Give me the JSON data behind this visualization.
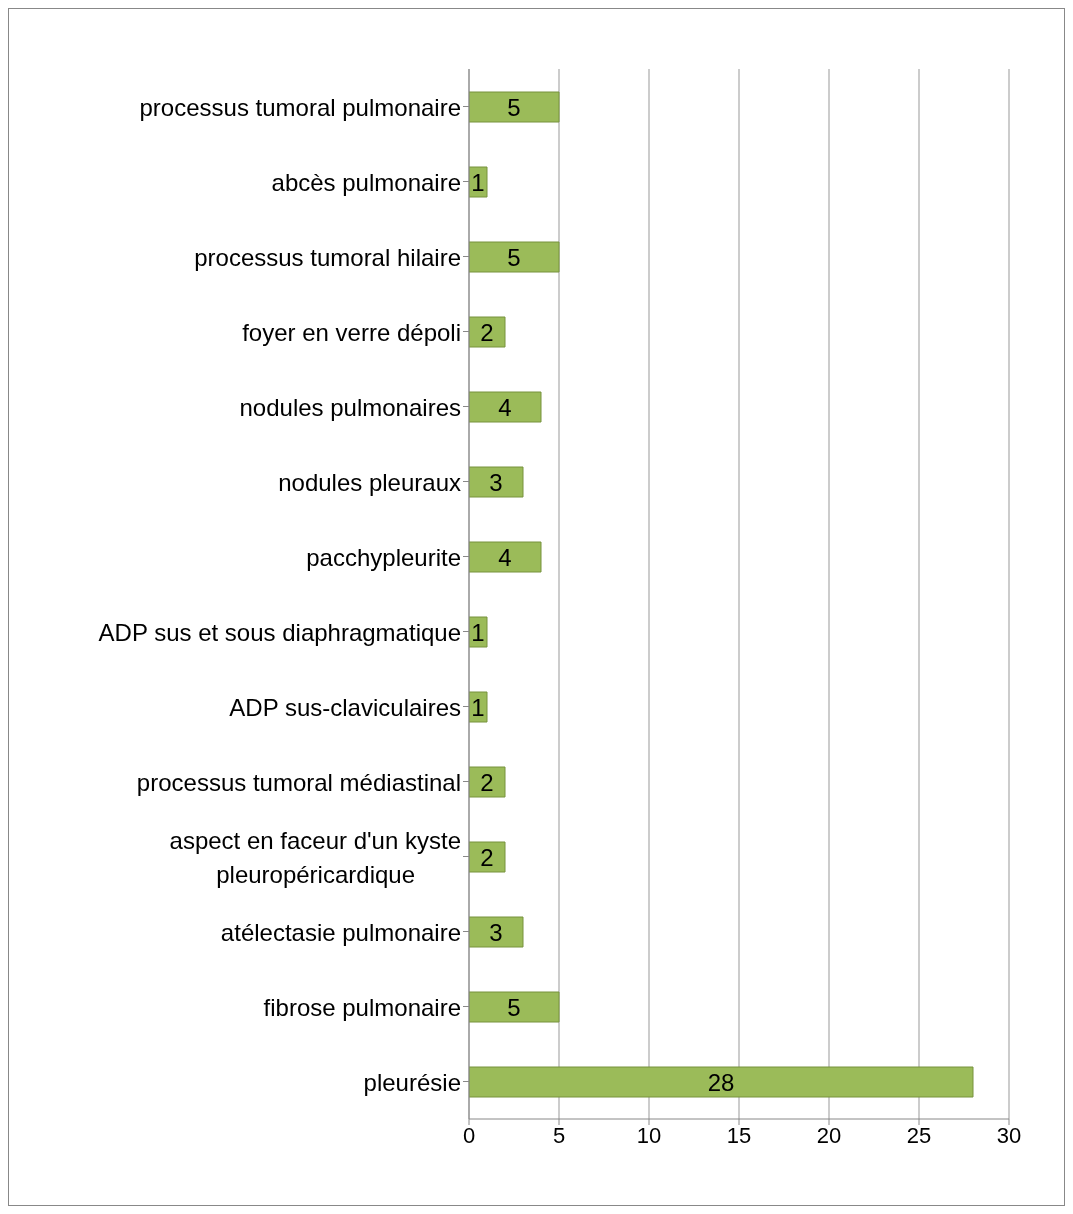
{
  "chart_data": {
    "type": "bar",
    "orientation": "horizontal",
    "categories": [
      "processus tumoral pulmonaire",
      "abcès pulmonaire",
      "processus tumoral hilaire",
      "foyer en verre dépoli",
      "nodules pulmonaires",
      "nodules pleuraux",
      "pacchypleurite",
      "ADP sus et sous diaphragmatique",
      "ADP sus-claviculaires",
      "processus tumoral médiastinal",
      "aspect en faceur d'un kyste pleuropéricardique",
      "atélectasie pulmonaire",
      "fibrose pulmonaire",
      "pleurésie"
    ],
    "values": [
      5,
      1,
      5,
      2,
      4,
      3,
      4,
      1,
      1,
      2,
      2,
      3,
      5,
      28
    ],
    "color": "#9bbb59",
    "xlim": [
      0,
      30
    ],
    "xticks": [
      0,
      5,
      10,
      15,
      20,
      25,
      30
    ],
    "grid": "x",
    "data_labels": true
  }
}
